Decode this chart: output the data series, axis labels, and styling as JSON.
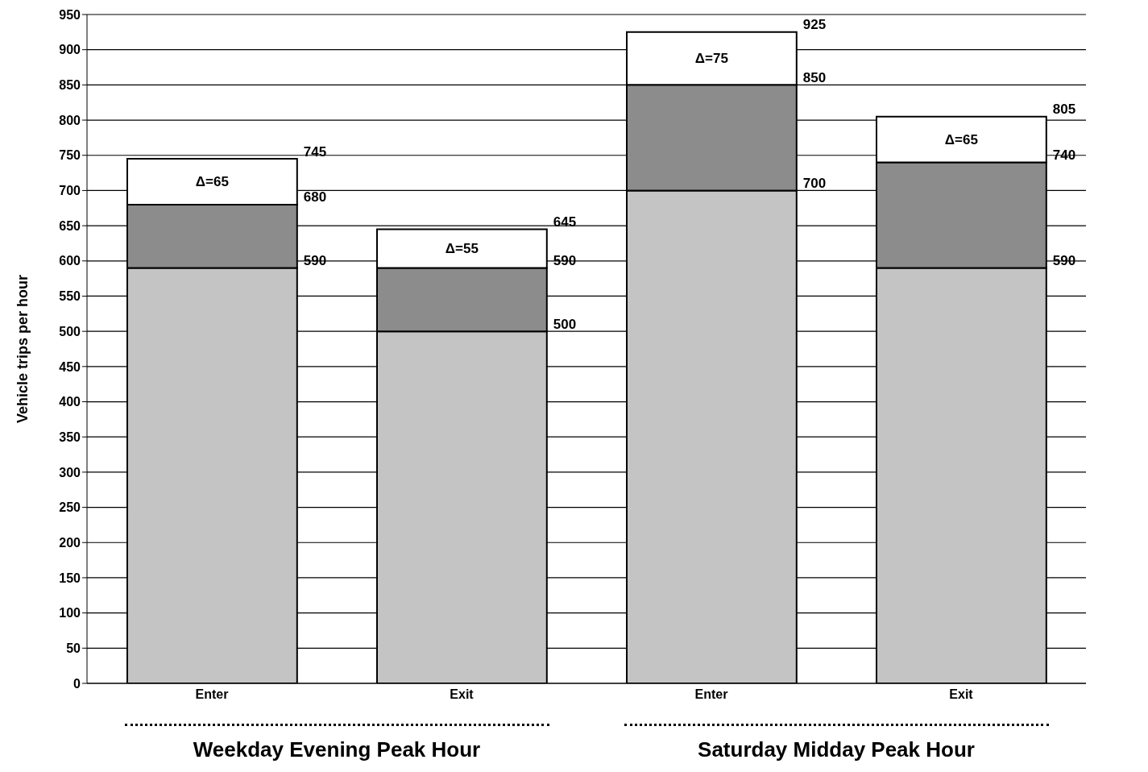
{
  "chart_data": {
    "type": "bar",
    "stacked": true,
    "ylabel": "Vehicle trips per hour",
    "categories": [
      "Enter",
      "Exit",
      "Enter",
      "Exit"
    ],
    "series": [
      {
        "color": "#c4c4c4",
        "values": [
          590,
          500,
          700,
          590
        ]
      },
      {
        "color": "#8c8c8c",
        "values": [
          90,
          90,
          150,
          150
        ]
      },
      {
        "color": "#ffffff",
        "values": [
          65,
          55,
          75,
          65
        ],
        "value_labels": [
          "Δ=65",
          "Δ=55",
          "Δ=75",
          "Δ=65"
        ]
      }
    ],
    "totals": [
      "745",
      "645",
      "925",
      "805"
    ],
    "ylim": [
      0,
      950
    ],
    "yticks": [
      0,
      50,
      100,
      150,
      200,
      250,
      300,
      350,
      400,
      450,
      500,
      550,
      600,
      650,
      700,
      750,
      800,
      850,
      900,
      950
    ],
    "grid": "y",
    "annotations": [
      "590",
      "680",
      "500",
      "590",
      "700",
      "850",
      "590",
      "740",
      "Weekday Evening Peak Hour",
      "Saturday Midday Peak Hour"
    ]
  }
}
